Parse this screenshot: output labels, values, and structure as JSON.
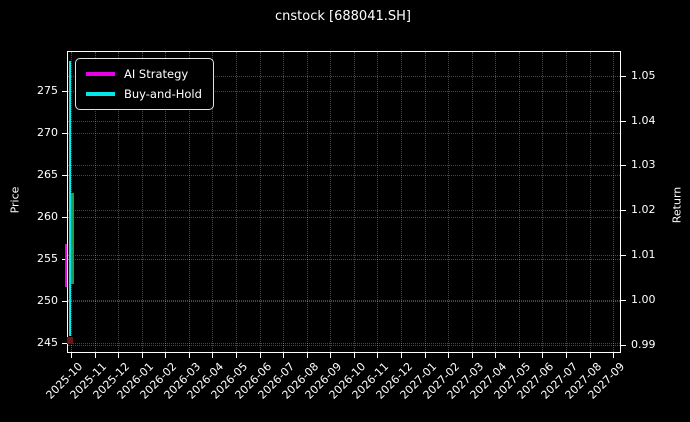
{
  "title": "cnstock [688041.SH]",
  "chart_data": {
    "type": "line",
    "title": "cnstock [688041.SH]",
    "ylabel_left": "Price",
    "ylabel_right": "Return",
    "grid": true,
    "legend_position": "upper-left",
    "x_tick_labels": [
      "2025-10",
      "2025-11",
      "2025-12",
      "2026-01",
      "2026-02",
      "2026-03",
      "2026-04",
      "2026-05",
      "2026-06",
      "2026-07",
      "2026-08",
      "2026-09",
      "2026-10",
      "2026-11",
      "2026-12",
      "2027-01",
      "2027-02",
      "2027-03",
      "2027-04",
      "2027-05",
      "2027-06",
      "2027-07",
      "2027-08",
      "2027-09"
    ],
    "price_ticks": [
      275,
      270,
      265,
      260,
      255,
      250,
      245
    ],
    "return_ticks": [
      "1.05",
      "1.04",
      "1.03",
      "1.02",
      "1.01",
      "1.00",
      "0.99"
    ],
    "price_axis_range": [
      243.93,
      279.62
    ],
    "return_axis_range": [
      0.9884,
      1.0553
    ],
    "data_note": "All plotted data is compressed into a vertical sliver at the first x position (early 2025-10); rest of the 2025-10 to 2027-09 axis is empty.",
    "series": [
      {
        "name": "AI Strategy",
        "color": "#e800e8",
        "axis": "return",
        "value_range": [
          1.003,
          1.0125
        ]
      },
      {
        "name": "Buy-and-Hold",
        "color": "#00e8e8",
        "axis": "price",
        "value_range": [
          245.8,
          278.6
        ]
      }
    ],
    "extra_marks": [
      {
        "name": "green-price-segment",
        "color": "#1d9e50",
        "axis": "price",
        "value_range": [
          252.0,
          262.8
        ]
      },
      {
        "name": "dark-red-end-mark",
        "color": "#6e1414",
        "axis": "price",
        "value_range": [
          244.9,
          245.7
        ]
      }
    ]
  },
  "colors": {
    "background": "#000000",
    "foreground": "#ffffff",
    "grid": "rgba(255,255,255,0.28)",
    "legend_border": "#e3e3e3"
  }
}
